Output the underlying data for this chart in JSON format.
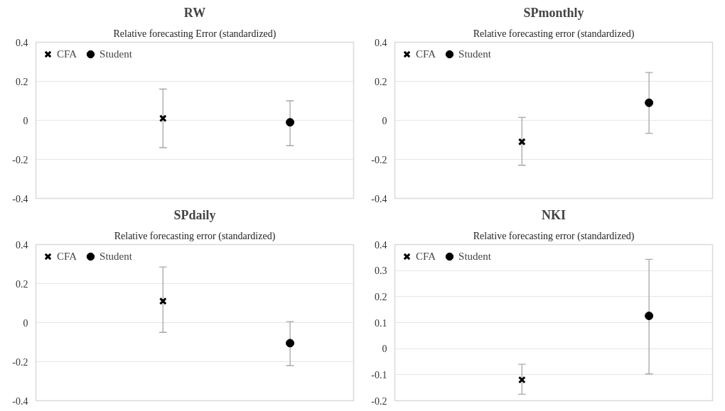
{
  "chart_data": [
    {
      "type": "scatter",
      "title": "RW",
      "subtitle": "Relative forecasting Error (standardized)",
      "categories": [
        null,
        null
      ],
      "ylim": [
        -0.4,
        0.4
      ],
      "yticks": [
        -0.4,
        -0.2,
        0,
        0.2,
        0.4
      ],
      "grid": "y",
      "legend": "top left",
      "tick_labels": "y",
      "series": [
        {
          "name": "CFA",
          "color": "#000000",
          "marker": "cross",
          "values": [
            0.01,
            null
          ],
          "errors": [
            [
              -0.14,
              0.16
            ],
            null
          ]
        },
        {
          "name": "Student",
          "color": "#000000",
          "marker": "circle",
          "values": [
            null,
            -0.01
          ],
          "errors": [
            null,
            [
              -0.13,
              0.1
            ]
          ]
        }
      ]
    },
    {
      "type": "scatter",
      "title": "SPmonthly",
      "subtitle": "Relative forecasting error (standardized)",
      "categories": [
        null,
        null
      ],
      "ylim": [
        -0.4,
        0.4
      ],
      "yticks": [
        -0.4,
        -0.2,
        0,
        0.2,
        0.4
      ],
      "grid": "y",
      "legend": "top left",
      "tick_labels": "y",
      "series": [
        {
          "name": "CFA",
          "color": "#000000",
          "marker": "cross",
          "values": [
            -0.11,
            null
          ],
          "errors": [
            [
              -0.23,
              0.015
            ],
            null
          ]
        },
        {
          "name": "Student",
          "color": "#000000",
          "marker": "circle",
          "values": [
            null,
            0.09
          ],
          "errors": [
            null,
            [
              -0.067,
              0.245
            ]
          ]
        }
      ]
    },
    {
      "type": "scatter",
      "title": "SPdaily",
      "subtitle": "Relative forecasting error (standardized)",
      "categories": [
        null,
        null
      ],
      "ylim": [
        -0.4,
        0.4
      ],
      "yticks": [
        -0.4,
        -0.2,
        0,
        0.2,
        0.4
      ],
      "grid": "y",
      "legend": "top left",
      "tick_labels": "y",
      "series": [
        {
          "name": "CFA",
          "color": "#000000",
          "marker": "cross",
          "values": [
            0.11,
            null
          ],
          "errors": [
            [
              -0.05,
              0.285
            ],
            null
          ]
        },
        {
          "name": "Student",
          "color": "#000000",
          "marker": "circle",
          "values": [
            null,
            -0.105
          ],
          "errors": [
            null,
            [
              -0.22,
              0.005
            ]
          ]
        }
      ]
    },
    {
      "type": "scatter",
      "title": "NKI",
      "subtitle": "Relative forecasting error (standardized)",
      "categories": [
        null,
        null
      ],
      "ylim": [
        -0.2,
        0.4
      ],
      "yticks": [
        -0.2,
        -0.1,
        0,
        0.1,
        0.2,
        0.3,
        0.4
      ],
      "grid": "y",
      "legend": "top left",
      "tick_labels": "y",
      "series": [
        {
          "name": "CFA",
          "color": "#000000",
          "marker": "cross",
          "values": [
            -0.12,
            null
          ],
          "errors": [
            [
              -0.175,
              -0.06
            ],
            null
          ]
        },
        {
          "name": "Student",
          "color": "#000000",
          "marker": "circle",
          "values": [
            null,
            0.126
          ],
          "errors": [
            null,
            [
              -0.097,
              0.343
            ]
          ]
        }
      ]
    }
  ]
}
